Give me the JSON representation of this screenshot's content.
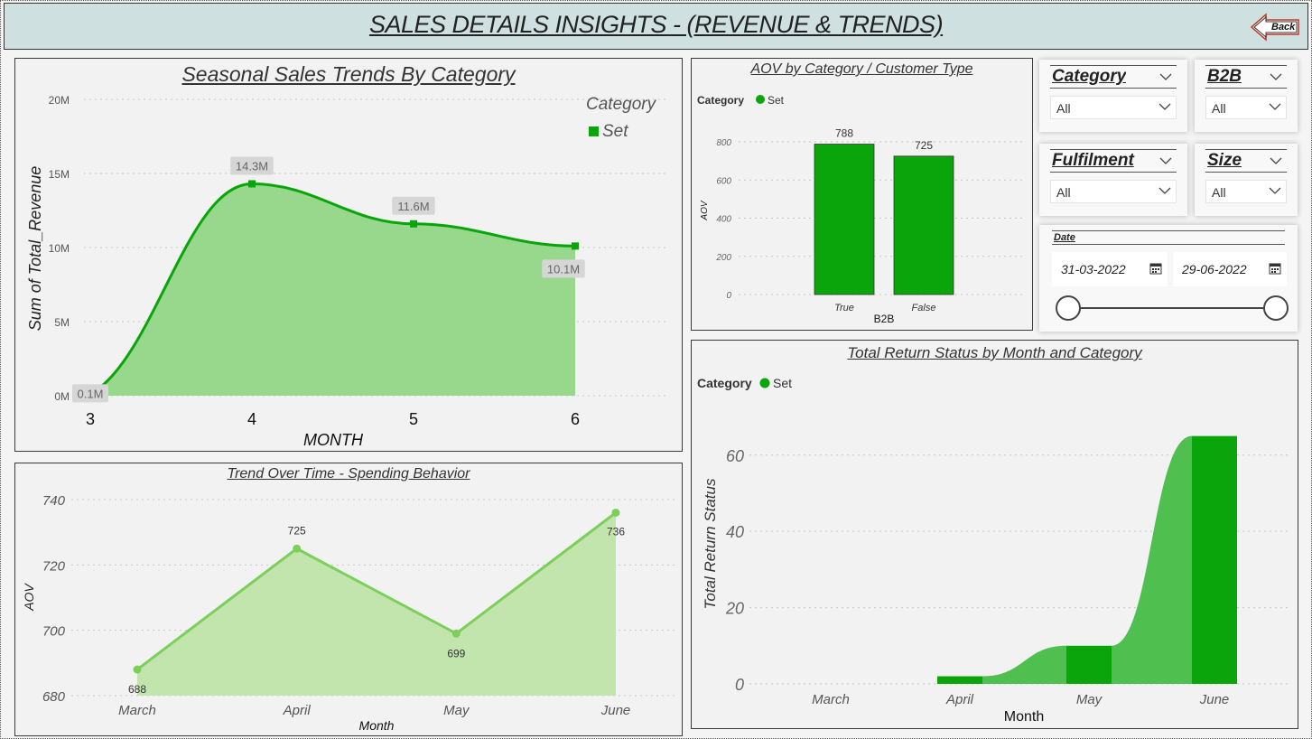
{
  "header": {
    "title": "SALES DETAILS INSIGHTS - (REVENUE & TRENDS)",
    "back_label": "Back"
  },
  "colors": {
    "dark_green": "#0aa50a",
    "mid_green": "#4fbf4f",
    "light_green": "#7bcf5a",
    "area_green": "#97d88d",
    "area_light": "#c2e4ad"
  },
  "slicers": {
    "category": {
      "label": "Category",
      "value": "All"
    },
    "b2b": {
      "label": "B2B",
      "value": "All"
    },
    "fulfilment": {
      "label": "Fulfilment",
      "value": "All"
    },
    "size": {
      "label": "Size",
      "value": "All"
    },
    "date": {
      "label": "Date",
      "start": "31-03-2022",
      "end": "29-06-2022"
    }
  },
  "chart_data": [
    {
      "id": "seasonal",
      "type": "area",
      "title": "Seasonal Sales Trends By Category",
      "xlabel": "MONTH",
      "ylabel": "Sum of Total_Revenue",
      "legend_title": "Category",
      "legend": [
        "Set"
      ],
      "x": [
        3,
        4,
        5,
        6
      ],
      "x_tick_labels": [
        "3",
        "4",
        "5",
        "6"
      ],
      "series": [
        {
          "name": "Set",
          "values": [
            0.1,
            14.3,
            11.6,
            10.1
          ]
        }
      ],
      "data_labels": [
        "0.1M",
        "14.3M",
        "11.6M",
        "10.1M"
      ],
      "y_ticks": [
        0,
        5,
        10,
        15,
        20
      ],
      "y_tick_labels": [
        "0M",
        "5M",
        "10M",
        "15M",
        "20M"
      ],
      "ylim": [
        0,
        20
      ]
    },
    {
      "id": "aov",
      "type": "bar",
      "title": "AOV by Category / Customer Type",
      "legend_title": "Category",
      "legend": [
        "Set"
      ],
      "xlabel": "B2B",
      "ylabel": "AOV",
      "categories": [
        "True",
        "False"
      ],
      "values": [
        788,
        725
      ],
      "data_labels": [
        "788",
        "725"
      ],
      "y_ticks": [
        0,
        200,
        400,
        600,
        800
      ],
      "y_tick_labels": [
        "0",
        "200",
        "400",
        "600",
        "800"
      ],
      "ylim": [
        0,
        800
      ]
    },
    {
      "id": "spending",
      "type": "area",
      "title": "Trend Over Time - Spending Behavior",
      "xlabel": "Month",
      "ylabel": "AOV",
      "categories": [
        "March",
        "April",
        "May",
        "June"
      ],
      "values": [
        688,
        725,
        699,
        736
      ],
      "data_labels": [
        "688",
        "725",
        "699",
        "736"
      ],
      "y_ticks": [
        680,
        700,
        720,
        740
      ],
      "y_tick_labels": [
        "680",
        "700",
        "720",
        "740"
      ],
      "ylim": [
        680,
        740
      ]
    },
    {
      "id": "returns",
      "type": "bar",
      "title": "Total Return Status by Month and Category",
      "legend_title": "Category",
      "legend": [
        "Set"
      ],
      "xlabel": "Month",
      "ylabel": "Total Return Status",
      "categories": [
        "March",
        "April",
        "May",
        "June"
      ],
      "values": [
        0,
        2,
        10,
        65
      ],
      "y_ticks": [
        0,
        20,
        40,
        60
      ],
      "y_tick_labels": [
        "0",
        "20",
        "40",
        "60"
      ],
      "ylim": [
        0,
        68
      ]
    }
  ]
}
